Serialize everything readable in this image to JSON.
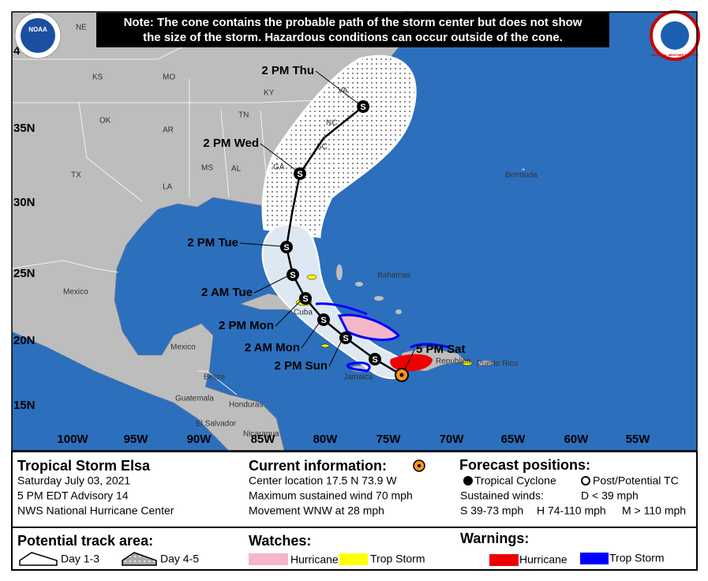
{
  "logos": {
    "noaa": "NOAA",
    "nws": "NATIONAL WEATHER SERVICE"
  },
  "map": {
    "note": [
      "Note: The cone contains the probable path of the storm center but does not show",
      "the size of the storm. Hazardous conditions can occur outside of the cone."
    ],
    "latitude_labels": [
      "4",
      "35N",
      "30N",
      "25N",
      "20N",
      "15N"
    ],
    "longitude_labels": [
      "100W",
      "95W",
      "90W",
      "85W",
      "80W",
      "75W",
      "70W",
      "65W",
      "60W",
      "55W"
    ],
    "place_labels": [
      "NE",
      "KS",
      "MO",
      "KY",
      "VA",
      "OK",
      "AR",
      "TN",
      "NC",
      "TX",
      "MS",
      "AL",
      "GA",
      "SC",
      "LA",
      "Bermuda",
      "Mexico",
      "Bahamas",
      "Cuba",
      "Jamaica",
      "Republica",
      "Puerto Rico",
      "Mexico",
      "Belize",
      "Guatemala",
      "Honduras",
      "El Salvador",
      "Nicaragua"
    ],
    "forecast_labels": [
      "5 PM Sat",
      "2 PM Sun",
      "2 AM Mon",
      "2 PM Mon",
      "2 AM Tue",
      "2 PM Tue",
      "2 PM Wed",
      "2 PM Thu"
    ],
    "marker_symbol": "S"
  },
  "info": {
    "storm": {
      "title": "Tropical Storm Elsa",
      "lines": [
        "Saturday July 03, 2021",
        "5 PM EDT Advisory 14",
        "NWS National Hurricane Center"
      ]
    },
    "current": {
      "title": "Current information:",
      "lines": [
        "Center location 17.5 N 73.9 W",
        "Maximum sustained wind 70 mph",
        "Movement WNW at 28 mph"
      ]
    },
    "forecast": {
      "title": "Forecast positions:",
      "tropical_cyclone": "Tropical Cyclone",
      "post_tc": "Post/Potential TC",
      "winds": [
        "Sustained winds:",
        "D < 39 mph",
        "S 39-73 mph",
        "H 74-110 mph",
        "M > 110 mph"
      ]
    },
    "track_area": {
      "title": "Potential track area:",
      "day_1_3": "Day 1-3",
      "day_4_5": "Day 4-5"
    },
    "watches": {
      "title": "Watches:",
      "items": [
        "Hurricane",
        "Trop Storm"
      ]
    },
    "warnings": {
      "title": "Warnings:",
      "items": [
        "Hurricane",
        "Trop Storm"
      ]
    }
  }
}
